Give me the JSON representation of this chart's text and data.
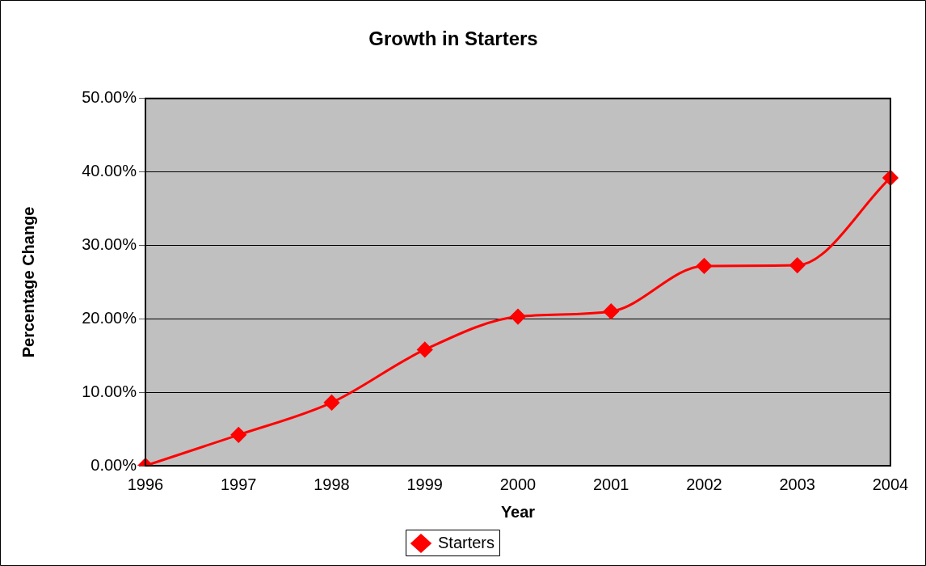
{
  "chart_data": {
    "type": "line",
    "title": "Growth in Starters",
    "xlabel": "Year",
    "ylabel": "Percentage Change",
    "categories": [
      "1996",
      "1997",
      "1998",
      "1999",
      "2000",
      "2001",
      "2002",
      "2003",
      "2004"
    ],
    "series": [
      {
        "name": "Starters",
        "color": "#ff0000",
        "values": [
          0,
          4.2,
          8.6,
          15.8,
          20.3,
          21.0,
          27.2,
          27.3,
          39.2
        ]
      }
    ],
    "ylim": [
      0,
      50
    ],
    "yticks": [
      {
        "value": 0,
        "label": "0.00%"
      },
      {
        "value": 10,
        "label": "10.00%"
      },
      {
        "value": 20,
        "label": "20.00%"
      },
      {
        "value": 30,
        "label": "30.00%"
      },
      {
        "value": 40,
        "label": "40.00%"
      },
      {
        "value": 50,
        "label": "50.00%"
      }
    ],
    "grid": "y",
    "legend": "bottom",
    "marker": "diamond",
    "line_style": "solid"
  }
}
